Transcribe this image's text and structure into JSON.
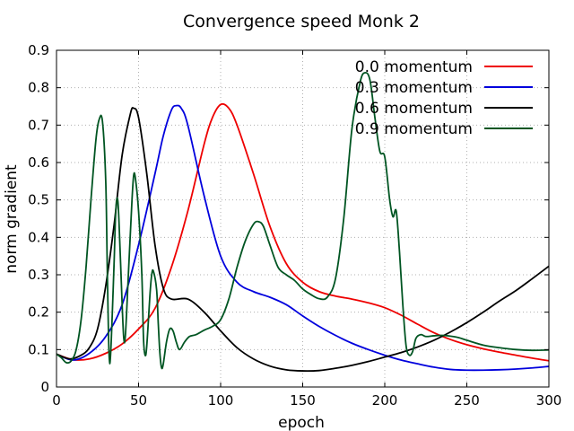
{
  "chart_data": {
    "type": "line",
    "title": "Convergence speed Monk 2",
    "xlabel": "epoch",
    "ylabel": "norm gradient",
    "xlim": [
      0,
      300
    ],
    "ylim": [
      0,
      0.9
    ],
    "xticks": [
      0,
      50,
      100,
      150,
      200,
      250,
      300
    ],
    "yticks": [
      0,
      0.1,
      0.2,
      0.3,
      0.4,
      0.5,
      0.6,
      0.7,
      0.8,
      0.9
    ],
    "xtick_labels": [
      "0",
      "50",
      "100",
      "150",
      "200",
      "250",
      "300"
    ],
    "ytick_labels": [
      "0",
      "0.1",
      "0.2",
      "0.3",
      "0.4",
      "0.5",
      "0.6",
      "0.7",
      "0.8",
      "0.9"
    ],
    "grid": true,
    "legend_position": "top-right",
    "series": [
      {
        "name": "0.0 momentum",
        "color": "#ee0000",
        "points": [
          [
            0,
            0.088
          ],
          [
            10,
            0.073
          ],
          [
            20,
            0.075
          ],
          [
            30,
            0.09
          ],
          [
            40,
            0.115
          ],
          [
            50,
            0.155
          ],
          [
            60,
            0.21
          ],
          [
            70,
            0.32
          ],
          [
            80,
            0.47
          ],
          [
            90,
            0.65
          ],
          [
            95,
            0.72
          ],
          [
            100,
            0.755
          ],
          [
            105,
            0.745
          ],
          [
            110,
            0.7
          ],
          [
            120,
            0.57
          ],
          [
            130,
            0.43
          ],
          [
            140,
            0.33
          ],
          [
            150,
            0.28
          ],
          [
            160,
            0.255
          ],
          [
            170,
            0.243
          ],
          [
            180,
            0.235
          ],
          [
            190,
            0.225
          ],
          [
            200,
            0.212
          ],
          [
            210,
            0.192
          ],
          [
            220,
            0.168
          ],
          [
            230,
            0.145
          ],
          [
            240,
            0.127
          ],
          [
            250,
            0.113
          ],
          [
            260,
            0.102
          ],
          [
            270,
            0.093
          ],
          [
            280,
            0.085
          ],
          [
            290,
            0.077
          ],
          [
            300,
            0.07
          ]
        ]
      },
      {
        "name": "0.3 momentum",
        "color": "#0000dd",
        "points": [
          [
            0,
            0.088
          ],
          [
            10,
            0.072
          ],
          [
            20,
            0.09
          ],
          [
            30,
            0.135
          ],
          [
            40,
            0.22
          ],
          [
            50,
            0.38
          ],
          [
            60,
            0.57
          ],
          [
            65,
            0.67
          ],
          [
            70,
            0.74
          ],
          [
            73,
            0.752
          ],
          [
            76,
            0.745
          ],
          [
            80,
            0.7
          ],
          [
            90,
            0.51
          ],
          [
            100,
            0.35
          ],
          [
            110,
            0.28
          ],
          [
            120,
            0.255
          ],
          [
            130,
            0.24
          ],
          [
            140,
            0.22
          ],
          [
            150,
            0.19
          ],
          [
            160,
            0.162
          ],
          [
            170,
            0.138
          ],
          [
            180,
            0.117
          ],
          [
            190,
            0.1
          ],
          [
            200,
            0.085
          ],
          [
            210,
            0.072
          ],
          [
            220,
            0.062
          ],
          [
            230,
            0.053
          ],
          [
            240,
            0.047
          ],
          [
            250,
            0.045
          ],
          [
            260,
            0.045
          ],
          [
            270,
            0.046
          ],
          [
            280,
            0.048
          ],
          [
            290,
            0.051
          ],
          [
            300,
            0.055
          ]
        ]
      },
      {
        "name": "0.6 momentum",
        "color": "#000000",
        "points": [
          [
            0,
            0.088
          ],
          [
            8,
            0.075
          ],
          [
            15,
            0.085
          ],
          [
            20,
            0.105
          ],
          [
            25,
            0.155
          ],
          [
            30,
            0.27
          ],
          [
            35,
            0.43
          ],
          [
            40,
            0.62
          ],
          [
            45,
            0.73
          ],
          [
            47,
            0.745
          ],
          [
            50,
            0.72
          ],
          [
            55,
            0.57
          ],
          [
            60,
            0.38
          ],
          [
            65,
            0.265
          ],
          [
            70,
            0.235
          ],
          [
            80,
            0.235
          ],
          [
            90,
            0.2
          ],
          [
            100,
            0.15
          ],
          [
            110,
            0.105
          ],
          [
            120,
            0.075
          ],
          [
            130,
            0.056
          ],
          [
            140,
            0.046
          ],
          [
            150,
            0.043
          ],
          [
            160,
            0.044
          ],
          [
            170,
            0.05
          ],
          [
            180,
            0.058
          ],
          [
            190,
            0.068
          ],
          [
            200,
            0.08
          ],
          [
            210,
            0.092
          ],
          [
            220,
            0.107
          ],
          [
            230,
            0.125
          ],
          [
            240,
            0.147
          ],
          [
            250,
            0.172
          ],
          [
            260,
            0.2
          ],
          [
            270,
            0.23
          ],
          [
            280,
            0.258
          ],
          [
            290,
            0.29
          ],
          [
            300,
            0.323
          ]
        ]
      },
      {
        "name": "0.9 momentum",
        "color": "#005522",
        "points": [
          [
            0,
            0.088
          ],
          [
            3,
            0.078
          ],
          [
            6,
            0.065
          ],
          [
            9,
            0.07
          ],
          [
            12,
            0.1
          ],
          [
            15,
            0.18
          ],
          [
            18,
            0.32
          ],
          [
            21,
            0.5
          ],
          [
            24,
            0.66
          ],
          [
            26,
            0.715
          ],
          [
            28,
            0.71
          ],
          [
            30,
            0.55
          ],
          [
            31,
            0.3
          ],
          [
            32,
            0.09
          ],
          [
            33,
            0.09
          ],
          [
            35,
            0.32
          ],
          [
            36,
            0.46
          ],
          [
            37,
            0.505
          ],
          [
            38,
            0.45
          ],
          [
            40,
            0.22
          ],
          [
            41,
            0.13
          ],
          [
            42,
            0.14
          ],
          [
            44,
            0.32
          ],
          [
            46,
            0.5
          ],
          [
            47,
            0.565
          ],
          [
            48,
            0.56
          ],
          [
            50,
            0.47
          ],
          [
            52,
            0.3
          ],
          [
            53,
            0.13
          ],
          [
            54,
            0.085
          ],
          [
            55,
            0.11
          ],
          [
            57,
            0.25
          ],
          [
            58,
            0.3
          ],
          [
            59,
            0.31
          ],
          [
            61,
            0.26
          ],
          [
            62,
            0.17
          ],
          [
            63,
            0.09
          ],
          [
            64,
            0.052
          ],
          [
            65,
            0.06
          ],
          [
            67,
            0.12
          ],
          [
            69,
            0.155
          ],
          [
            71,
            0.15
          ],
          [
            73,
            0.12
          ],
          [
            75,
            0.1
          ],
          [
            78,
            0.12
          ],
          [
            81,
            0.135
          ],
          [
            85,
            0.14
          ],
          [
            90,
            0.152
          ],
          [
            95,
            0.162
          ],
          [
            100,
            0.18
          ],
          [
            105,
            0.235
          ],
          [
            110,
            0.32
          ],
          [
            115,
            0.39
          ],
          [
            120,
            0.435
          ],
          [
            123,
            0.442
          ],
          [
            126,
            0.43
          ],
          [
            130,
            0.38
          ],
          [
            135,
            0.32
          ],
          [
            140,
            0.3
          ],
          [
            145,
            0.285
          ],
          [
            150,
            0.262
          ],
          [
            155,
            0.247
          ],
          [
            160,
            0.236
          ],
          [
            165,
            0.24
          ],
          [
            170,
            0.29
          ],
          [
            175,
            0.45
          ],
          [
            180,
            0.69
          ],
          [
            185,
            0.815
          ],
          [
            188,
            0.84
          ],
          [
            191,
            0.82
          ],
          [
            194,
            0.72
          ],
          [
            197,
            0.63
          ],
          [
            200,
            0.615
          ],
          [
            203,
            0.5
          ],
          [
            205,
            0.455
          ],
          [
            207,
            0.47
          ],
          [
            209,
            0.36
          ],
          [
            211,
            0.22
          ],
          [
            213,
            0.11
          ],
          [
            215,
            0.085
          ],
          [
            217,
            0.095
          ],
          [
            219,
            0.13
          ],
          [
            222,
            0.14
          ],
          [
            225,
            0.135
          ],
          [
            230,
            0.137
          ],
          [
            235,
            0.138
          ],
          [
            240,
            0.136
          ],
          [
            245,
            0.132
          ],
          [
            250,
            0.125
          ],
          [
            260,
            0.112
          ],
          [
            270,
            0.105
          ],
          [
            280,
            0.1
          ],
          [
            290,
            0.098
          ],
          [
            300,
            0.099
          ]
        ]
      }
    ]
  }
}
